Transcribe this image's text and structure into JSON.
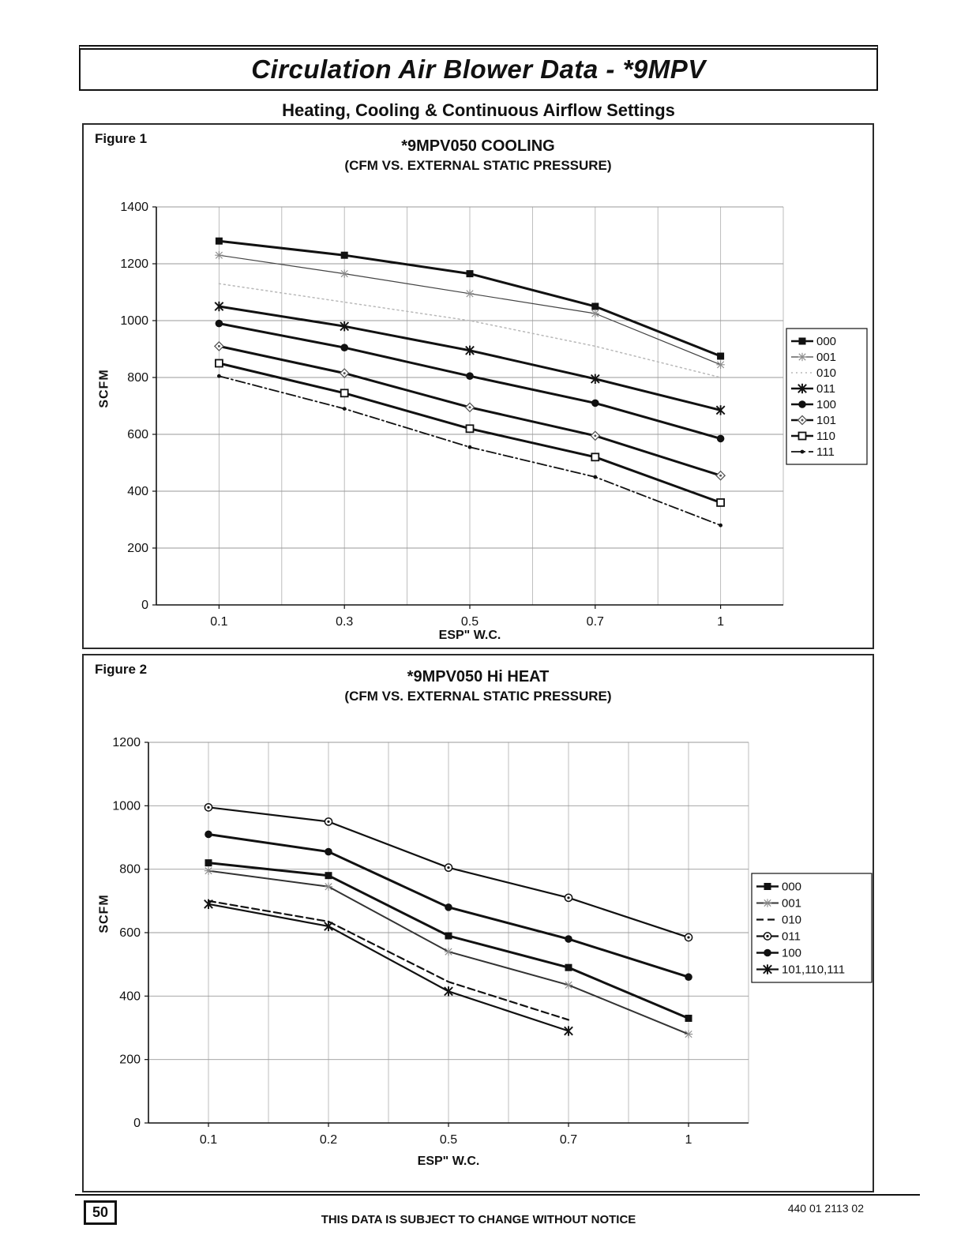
{
  "page": {
    "title": "Circulation Air Blower Data - *9MPV",
    "subtitle": "Heating, Cooling & Continuous Airflow Settings",
    "footer": {
      "page_number": "50",
      "notice": "THIS DATA IS SUBJECT TO CHANGE WITHOUT NOTICE",
      "doc_number": "440 01 2113 02"
    }
  },
  "figures": [
    {
      "label": "Figure 1",
      "title": "*9MPV050 COOLING",
      "subtitle": "(CFM VS. EXTERNAL STATIC PRESSURE)",
      "ylabel": "SCFM",
      "xlabel": "ESP\" W.C.",
      "chart_data": {
        "type": "line",
        "categories": [
          "0.1",
          "0.3",
          "0.5",
          "0.7",
          "1"
        ],
        "xlabel": "ESP\" W.C.",
        "ylabel": "SCFM",
        "ylim": [
          0,
          1400
        ],
        "ytick_step": 200,
        "grid": true,
        "legend_position": "right",
        "series": [
          {
            "name": "000",
            "marker": "filled-square",
            "line": "solid",
            "width": 3,
            "values": [
              1280,
              1230,
              1165,
              1050,
              875
            ]
          },
          {
            "name": "001",
            "marker": "star-light",
            "line": "solid",
            "width": 1.2,
            "color": "#444444",
            "values": [
              1230,
              1165,
              1095,
              1025,
              845
            ]
          },
          {
            "name": "010",
            "marker": "none",
            "line": "dotted",
            "width": 1.5,
            "color": "#b8b8b8",
            "values": [
              1130,
              1065,
              1000,
              910,
              800
            ]
          },
          {
            "name": "011",
            "marker": "x",
            "line": "solid",
            "width": 3,
            "values": [
              1050,
              980,
              895,
              795,
              685
            ]
          },
          {
            "name": "100",
            "marker": "filled-circle",
            "line": "solid",
            "width": 3,
            "values": [
              990,
              905,
              805,
              710,
              585
            ]
          },
          {
            "name": "101",
            "marker": "diamond-dot",
            "line": "solid",
            "width": 3,
            "values": [
              910,
              815,
              695,
              595,
              455
            ]
          },
          {
            "name": "110",
            "marker": "open-square",
            "line": "solid",
            "width": 3,
            "values": [
              850,
              745,
              620,
              520,
              360
            ]
          },
          {
            "name": "111",
            "marker": "dot-small",
            "line": "dashdot",
            "width": 1.8,
            "values": [
              805,
              690,
              555,
              450,
              280
            ]
          }
        ]
      }
    },
    {
      "label": "Figure 2",
      "title": "*9MPV050 Hi HEAT",
      "subtitle": "(CFM VS. EXTERNAL STATIC PRESSURE)",
      "ylabel": "SCFM",
      "xlabel": "ESP\" W.C.",
      "chart_data": {
        "type": "line",
        "categories": [
          "0.1",
          "0.2",
          "0.5",
          "0.7",
          "1"
        ],
        "xlabel": "ESP\" W.C.",
        "ylabel": "SCFM",
        "ylim": [
          0,
          1200
        ],
        "ytick_step": 200,
        "grid": true,
        "legend_position": "right",
        "series": [
          {
            "name": "000",
            "marker": "filled-square",
            "line": "solid",
            "width": 3,
            "values": [
              820,
              780,
              590,
              490,
              330
            ]
          },
          {
            "name": "001",
            "marker": "star-light",
            "line": "solid",
            "width": 2,
            "color": "#333333",
            "values": [
              795,
              745,
              540,
              435,
              280
            ]
          },
          {
            "name": "010",
            "marker": "none",
            "line": "dashed",
            "width": 2.2,
            "values": [
              700,
              635,
              445,
              325,
              null
            ]
          },
          {
            "name": "011",
            "marker": "circle-dot",
            "line": "solid",
            "width": 2.2,
            "values": [
              995,
              950,
              805,
              710,
              585
            ]
          },
          {
            "name": "100",
            "marker": "filled-circle",
            "line": "solid",
            "width": 3,
            "values": [
              910,
              855,
              680,
              580,
              460
            ]
          },
          {
            "name": "101,110,111",
            "marker": "x",
            "line": "solid",
            "width": 2.2,
            "values": [
              690,
              620,
              415,
              290,
              null
            ]
          }
        ]
      }
    }
  ]
}
